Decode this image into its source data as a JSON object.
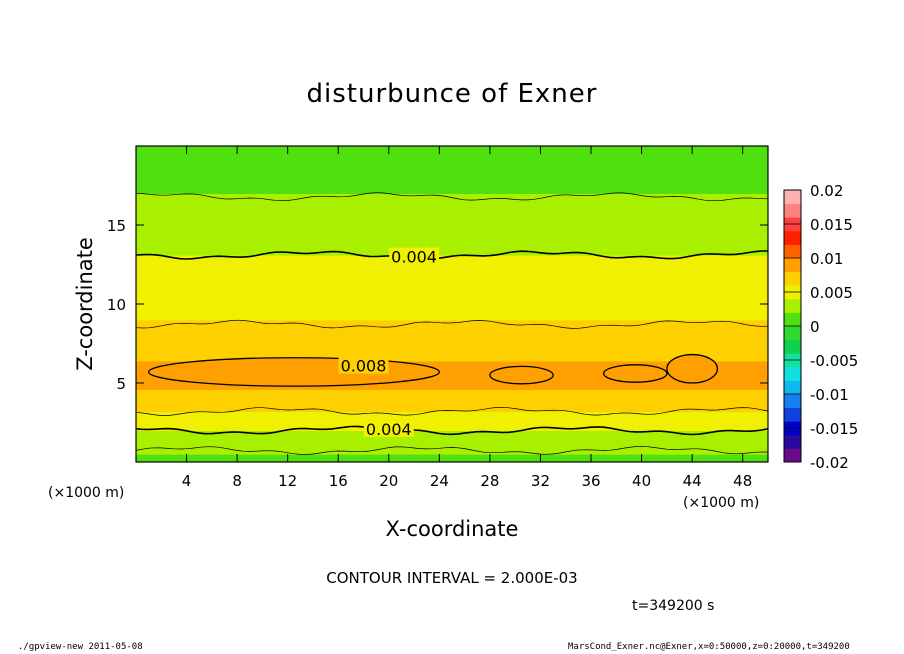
{
  "chart_data": {
    "type": "heatmap",
    "title": "disturbunce of Exner",
    "xlabel": "X-coordinate",
    "ylabel": "Z-coordinate",
    "x_unit": "(×1000 m)",
    "y_unit": "(×1000 m)",
    "xlim": [
      0,
      50
    ],
    "ylim": [
      0,
      20
    ],
    "x_ticks": [
      4,
      8,
      12,
      16,
      20,
      24,
      28,
      32,
      36,
      40,
      44,
      48
    ],
    "y_ticks": [
      5,
      10,
      15
    ],
    "contour_interval_text": "CONTOUR INTERVAL = 2.000E-03",
    "time_text": "t=349200 s",
    "colorbar": {
      "range": [
        -0.02,
        0.02
      ],
      "tick_labels": [
        "0.02",
        "0.015",
        "0.01",
        "0.005",
        "0",
        "-0.005",
        "-0.01",
        "-0.015",
        "-0.02"
      ],
      "tick_values": [
        0.02,
        0.015,
        0.01,
        0.005,
        0,
        -0.005,
        -0.01,
        -0.015,
        -0.02
      ],
      "colors_bottom_to_top": [
        "#6a0a8a",
        "#2a0a9a",
        "#0000c8",
        "#1040e0",
        "#1480f0",
        "#10b8f0",
        "#10e0e0",
        "#10e0a0",
        "#10d050",
        "#30d830",
        "#50e010",
        "#a8f000",
        "#f0f000",
        "#ffd000",
        "#ffa000",
        "#ff6000",
        "#ff2000",
        "#ff4040",
        "#ff8080",
        "#ffb0b0"
      ]
    },
    "field_profile": {
      "z": [
        0,
        0.5,
        1.2,
        2.0,
        2.6,
        3.2,
        4.0,
        4.6,
        5.2,
        5.8,
        6.4,
        7.0,
        8.0,
        9.0,
        9.8,
        10.5,
        11.5,
        12.5,
        13.1,
        14.0,
        15.5,
        17.0,
        18.5,
        20.0
      ],
      "value": [
        0.0005,
        0.0015,
        0.003,
        0.004,
        0.005,
        0.006,
        0.007,
        0.0078,
        0.0083,
        0.0082,
        0.0078,
        0.0072,
        0.0065,
        0.0058,
        0.0052,
        0.0048,
        0.0044,
        0.0041,
        0.004,
        0.0034,
        0.0026,
        0.0019,
        0.0014,
        0.001
      ]
    },
    "contour_labels": [
      {
        "text": "0.004",
        "x": 22,
        "z": 13.0
      },
      {
        "text": "0.008",
        "x": 18,
        "z": 6.1
      },
      {
        "text": "0.004",
        "x": 20,
        "z": 2.1
      }
    ],
    "high_blobs": [
      {
        "x0": 1,
        "x1": 24,
        "zc": 5.7,
        "h": 0.9
      },
      {
        "x0": 28,
        "x1": 33,
        "zc": 5.5,
        "h": 0.55
      },
      {
        "x0": 37,
        "x1": 42,
        "zc": 5.6,
        "h": 0.55
      },
      {
        "x0": 42,
        "x1": 46,
        "zc": 5.9,
        "h": 0.9
      }
    ]
  },
  "footer": {
    "left": "./gpview-new   2011-05-08",
    "right": "MarsCond_Exner.nc@Exner,x=0:50000,z=0:20000,t=349200"
  }
}
